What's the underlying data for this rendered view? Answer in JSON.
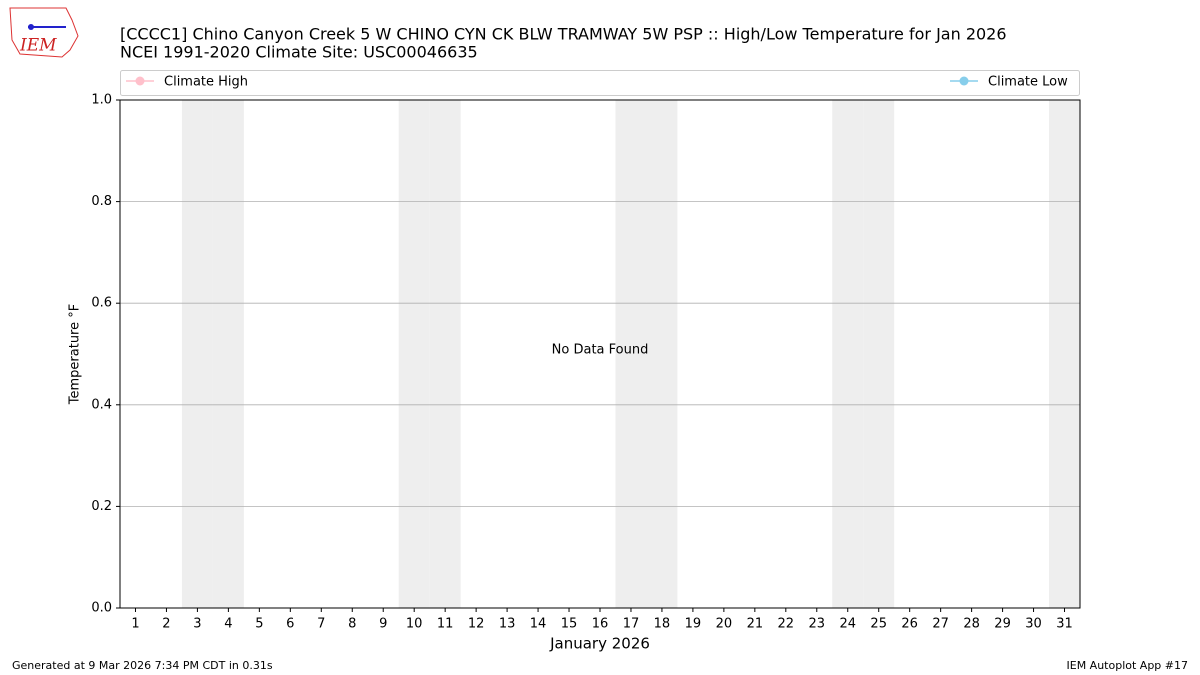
{
  "logo_text": "IEM",
  "chart_data": {
    "type": "line",
    "title": "[CCCC1] Chino Canyon Creek 5 W CHINO CYN CK BLW TRAMWAY 5W PSP :: High/Low Temperature for Jan 2026",
    "subtitle": "NCEI 1991-2020 Climate Site: USC00046635",
    "y_label": "Temperature °F",
    "x_label": "January 2026",
    "annotation": "No Data Found",
    "series": [
      {
        "name": "Climate High",
        "color": "#ffc0cb"
      },
      {
        "name": "Climate Low",
        "color": "#87ceeb"
      }
    ],
    "legend": "top",
    "xlim": [
      0.5,
      31.5
    ],
    "xticks": [
      1,
      2,
      3,
      4,
      5,
      6,
      7,
      8,
      9,
      10,
      11,
      12,
      13,
      14,
      15,
      16,
      17,
      18,
      19,
      20,
      21,
      22,
      23,
      24,
      25,
      26,
      27,
      28,
      29,
      30,
      31
    ],
    "shaded_days": [
      3,
      4,
      10,
      11,
      17,
      18,
      24,
      25,
      31
    ],
    "shade_color": "#eeeeee",
    "ylim": [
      0,
      1
    ],
    "yticks": [
      {
        "value": 0,
        "label": "0.0"
      },
      {
        "value": 0.2,
        "label": "0.2"
      },
      {
        "value": 0.4,
        "label": "0.4"
      },
      {
        "value": 0.6,
        "label": "0.6"
      },
      {
        "value": 0.8,
        "label": "0.8"
      },
      {
        "value": 1,
        "label": "1.0"
      }
    ],
    "grid": true,
    "footer_left": "Generated at 9 Mar 2026 7:34 PM CDT in 0.31s",
    "footer_right": "IEM Autoplot App #17"
  }
}
